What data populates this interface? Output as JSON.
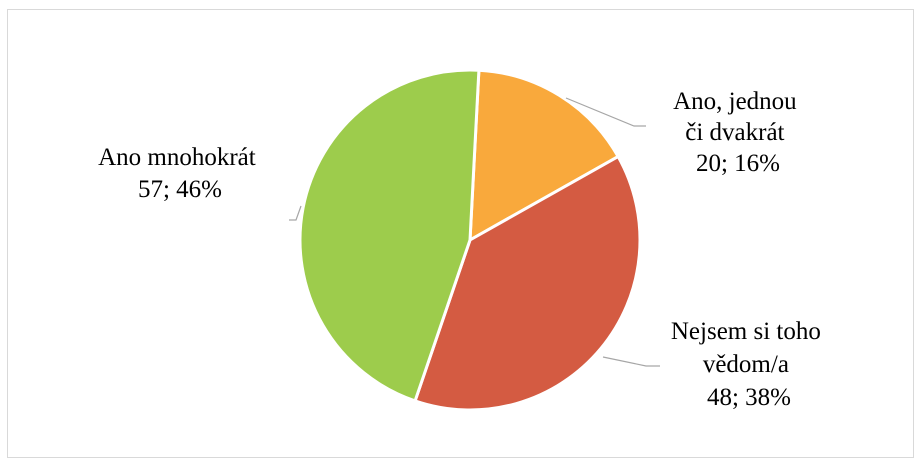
{
  "chart_data": {
    "type": "pie",
    "title": "",
    "slices": [
      {
        "label_lines": [
          "Ano, jednou",
          "či dvakrát"
        ],
        "value_text": "20; 16%",
        "value": 20,
        "percent": 16,
        "color": "#f9a93c"
      },
      {
        "label_lines": [
          "Nejsem si toho",
          "vědom/a"
        ],
        "value_text": "48; 38%",
        "value": 48,
        "percent": 38,
        "color": "#d45b42"
      },
      {
        "label_lines": [
          "Ano mnohokrát"
        ],
        "value_text": "57; 46%",
        "value": 57,
        "percent": 46,
        "color": "#9dcc4c"
      }
    ],
    "start_angle_deg": 3,
    "slice_border_color": "#ffffff",
    "leader_line_color": "#a6a6a6",
    "legend": "none"
  }
}
